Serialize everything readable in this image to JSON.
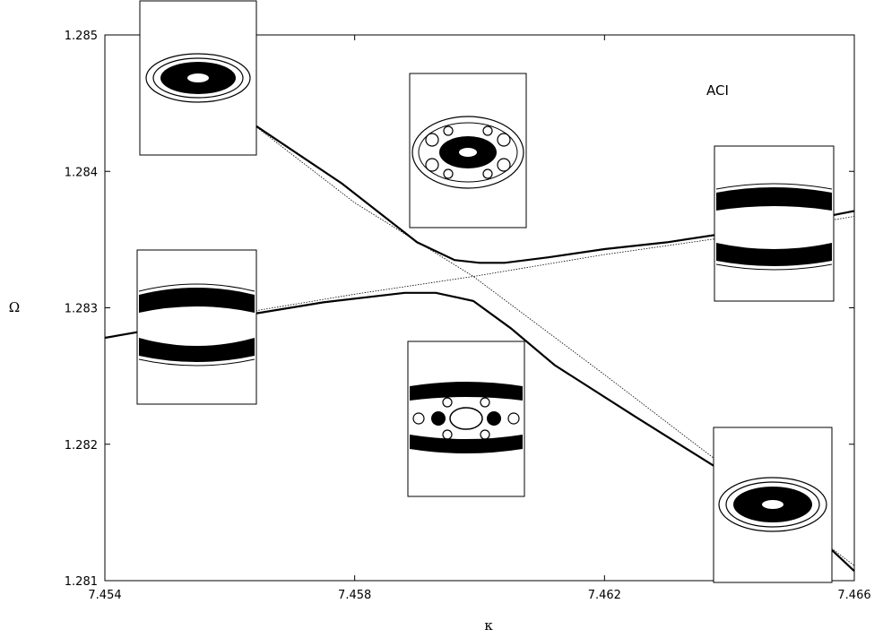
{
  "chart_data": {
    "type": "line",
    "title": "",
    "xlabel": "κ",
    "ylabel": "Ω",
    "xlim": [
      7.454,
      7.466
    ],
    "ylim": [
      1.281,
      1.285
    ],
    "xticks": [
      7.454,
      7.458,
      7.462,
      7.466
    ],
    "xtick_labels": [
      "7.454",
      "7.458",
      "7.462",
      "7.466"
    ],
    "yticks": [
      1.281,
      1.282,
      1.283,
      1.284,
      1.285
    ],
    "ytick_labels": [
      "1.281",
      "1.282",
      "1.283",
      "1.284",
      "1.285"
    ],
    "annotation": "ACI",
    "grid": false,
    "series": [
      {
        "style": "solid",
        "x": [
          7.4563,
          7.4578,
          7.459,
          7.4596,
          7.46,
          7.4604,
          7.4611,
          7.462,
          7.463,
          7.464,
          7.465,
          7.466
        ],
        "y": [
          1.28437,
          1.28391,
          1.28348,
          1.28335,
          1.28333,
          1.28333,
          1.28337,
          1.28343,
          1.28348,
          1.28355,
          1.28362,
          1.28371
        ]
      },
      {
        "style": "solid",
        "x": [
          7.454,
          7.455,
          7.4563,
          7.4575,
          7.4588,
          7.4593,
          7.4599,
          7.4605,
          7.4612,
          7.4625,
          7.464,
          7.465,
          7.466
        ],
        "y": [
          1.28278,
          1.28286,
          1.28295,
          1.28304,
          1.28311,
          1.28311,
          1.28305,
          1.28285,
          1.28258,
          1.2822,
          1.28177,
          1.2815,
          1.28107
        ]
      },
      {
        "style": "dotted",
        "x": [
          7.4563,
          7.458,
          7.4599,
          7.462,
          7.464,
          7.466
        ],
        "y": [
          1.28437,
          1.28377,
          1.28323,
          1.28251,
          1.28181,
          1.28111
        ]
      },
      {
        "style": "dotted",
        "x": [
          7.454,
          7.4563,
          7.458,
          7.4599,
          7.462,
          7.464,
          7.466
        ],
        "y": [
          1.28278,
          1.28297,
          1.2831,
          1.28323,
          1.28339,
          1.28352,
          1.28367
        ]
      }
    ]
  }
}
